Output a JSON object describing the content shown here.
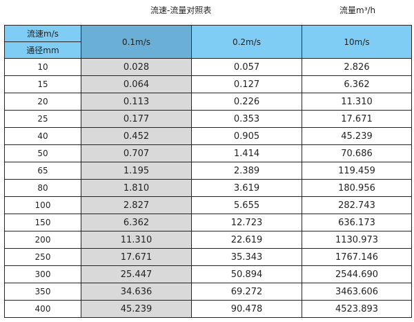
{
  "title": "流速-流量对照表",
  "unit_label": "流量m³/h",
  "header": {
    "velocity_label": "流速m/s",
    "diameter_label": "通径mm",
    "columns": [
      "0.1m/s",
      "0.2m/s",
      "10m/s"
    ]
  },
  "rows": [
    [
      "10",
      "0.028",
      "0.057",
      "2.826"
    ],
    [
      "15",
      "0.064",
      "0.127",
      "6.362"
    ],
    [
      "20",
      "0.113",
      "0.226",
      "11.310"
    ],
    [
      "25",
      "0.177",
      "0.353",
      "17.671"
    ],
    [
      "40",
      "0.452",
      "0.905",
      "45.239"
    ],
    [
      "50",
      "0.707",
      "1.414",
      "70.686"
    ],
    [
      "65",
      "1.195",
      "2.389",
      "119.459"
    ],
    [
      "80",
      "1.810",
      "3.619",
      "180.956"
    ],
    [
      "100",
      "2.827",
      "5.655",
      "282.743"
    ],
    [
      "150",
      "6.362",
      "12.723",
      "636.173"
    ],
    [
      "200",
      "11.310",
      "22.619",
      "1130.973"
    ],
    [
      "250",
      "17.671",
      "35.343",
      "1767.146"
    ],
    [
      "300",
      "25.447",
      "50.894",
      "2544.690"
    ],
    [
      "350",
      "34.636",
      "69.272",
      "3463.606"
    ],
    [
      "400",
      "45.239",
      "90.478",
      "4523.893"
    ]
  ],
  "colors": {
    "header": "#7fcdf4",
    "highlight_header": "#6aafd5",
    "highlight_cells": "#d9d9d9"
  }
}
